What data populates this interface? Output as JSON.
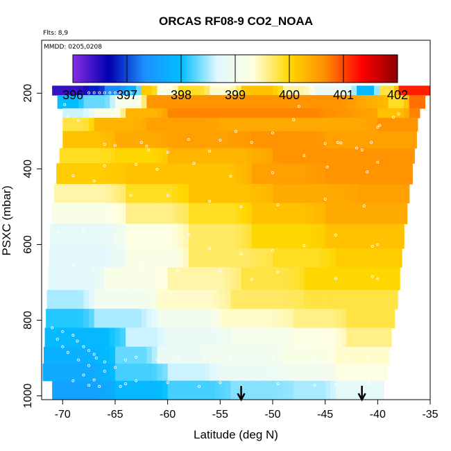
{
  "chart_data": {
    "type": "heatmap",
    "title": "ORCAS RF08-9 CO2_NOAA",
    "subtitle_flights": "Flts: 8,9",
    "subtitle_dates": "MMDD: 0205,0208",
    "xlabel": "Latitude (deg N)",
    "ylabel": "PSXC (mbar)",
    "xlim": [
      -72,
      -35
    ],
    "ylim": [
      1010,
      60
    ],
    "x_ticks": [
      "-70",
      "-65",
      "-60",
      "-55",
      "-50",
      "-45",
      "-40",
      "-35"
    ],
    "y_ticks": [
      "200",
      "400",
      "600",
      "800",
      "1000"
    ],
    "colorbar": {
      "min": 396,
      "max": 402,
      "ticks": [
        "396",
        "397",
        "398",
        "399",
        "400",
        "401",
        "402"
      ],
      "colors": [
        "#8a2be2",
        "#0000b0",
        "#1e90ff",
        "#00bfff",
        "#e0f8ff",
        "#ffffe0",
        "#ffd700",
        "#ff8c00",
        "#ff0000",
        "#8b0000"
      ]
    },
    "layers": [
      {
        "p_top": 180,
        "p_bot": 205,
        "lat_start": -71,
        "lat_end": -35,
        "segments": [
          [
            -71,
            -67.5,
            396.4
          ],
          [
            -67.5,
            -66,
            396.8
          ],
          [
            -66,
            -64,
            397.3
          ],
          [
            -64,
            -62.5,
            397.8
          ],
          [
            -62.5,
            -61,
            400.1
          ],
          [
            -61,
            -59,
            399.3
          ],
          [
            -59,
            -56,
            399.9
          ],
          [
            -56,
            -53,
            399.4
          ],
          [
            -53,
            -49,
            400.2
          ],
          [
            -49,
            -46,
            399.5
          ],
          [
            -46,
            -42,
            398.9
          ],
          [
            -42,
            -39.8,
            397.9
          ],
          [
            -39.8,
            -38,
            399.8
          ],
          [
            -38,
            -35,
            401.2
          ]
        ]
      },
      {
        "p_top": 205,
        "p_bot": 240,
        "lat_start": -70.5,
        "lat_end": -35.5,
        "segments": [
          [
            -70.5,
            -68,
            398.0
          ],
          [
            -68,
            -65,
            398.3
          ],
          [
            -65,
            -62,
            399.1
          ],
          [
            -62,
            -55,
            400.6
          ],
          [
            -55,
            -39,
            400.6
          ],
          [
            -39,
            -37,
            399.9
          ],
          [
            -37,
            -35.5,
            400.8
          ]
        ]
      },
      {
        "p_top": 240,
        "p_bot": 265,
        "lat_start": -70,
        "lat_end": -36,
        "segments": [
          [
            -70,
            -67,
            398.6
          ],
          [
            -67,
            -64,
            399.2
          ],
          [
            -64,
            -60,
            400.3
          ],
          [
            -60,
            -40,
            400.7
          ],
          [
            -40,
            -37,
            400.2
          ],
          [
            -37,
            -36,
            400.7
          ]
        ]
      },
      {
        "p_top": 265,
        "p_bot": 300,
        "lat_start": -70,
        "lat_end": -36.2,
        "segments": [
          [
            -70,
            -67,
            399.8
          ],
          [
            -67,
            -62,
            400.3
          ],
          [
            -62,
            -55,
            400.5
          ],
          [
            -55,
            -48,
            400.4
          ],
          [
            -48,
            -40,
            400.4
          ],
          [
            -40,
            -36.2,
            400.6
          ]
        ]
      },
      {
        "p_top": 300,
        "p_bot": 345,
        "lat_start": -70,
        "lat_end": -36.3,
        "segments": [
          [
            -70,
            -65,
            400.2
          ],
          [
            -65,
            -60,
            400.4
          ],
          [
            -60,
            -52,
            400.5
          ],
          [
            -52,
            -45,
            400.6
          ],
          [
            -45,
            -36.3,
            400.5
          ]
        ]
      },
      {
        "p_top": 345,
        "p_bot": 385,
        "lat_start": -70.3,
        "lat_end": -36.5,
        "segments": [
          [
            -70.3,
            -65,
            399.9
          ],
          [
            -65,
            -60,
            400.0
          ],
          [
            -60,
            -50,
            400.3
          ],
          [
            -50,
            -40,
            400.6
          ],
          [
            -40,
            -36.5,
            400.6
          ]
        ]
      },
      {
        "p_top": 385,
        "p_bot": 440,
        "lat_start": -70.6,
        "lat_end": -36.7,
        "segments": [
          [
            -70.6,
            -64,
            400.1
          ],
          [
            -64,
            -58,
            400.2
          ],
          [
            -58,
            -52,
            400.2
          ],
          [
            -52,
            -45,
            400.5
          ],
          [
            -45,
            -36.7,
            400.6
          ]
        ]
      },
      {
        "p_top": 440,
        "p_bot": 490,
        "lat_start": -70.8,
        "lat_end": -37.0,
        "segments": [
          [
            -70.8,
            -64,
            399.5
          ],
          [
            -64,
            -58,
            399.9
          ],
          [
            -58,
            -50,
            400.2
          ],
          [
            -50,
            -42,
            400.4
          ],
          [
            -42,
            -37.0,
            400.5
          ]
        ]
      },
      {
        "p_top": 490,
        "p_bot": 545,
        "lat_start": -71.0,
        "lat_end": -37.2,
        "segments": [
          [
            -71,
            -64,
            399.2
          ],
          [
            -64,
            -58,
            399.6
          ],
          [
            -58,
            -52,
            399.9
          ],
          [
            -52,
            -45,
            400.2
          ],
          [
            -45,
            -37.2,
            400.4
          ]
        ]
      },
      {
        "p_top": 545,
        "p_bot": 610,
        "lat_start": -71.2,
        "lat_end": -37.5,
        "segments": [
          [
            -71.2,
            -64,
            398.8
          ],
          [
            -64,
            -58,
            399.3
          ],
          [
            -58,
            -52,
            399.7
          ],
          [
            -52,
            -45,
            400.0
          ],
          [
            -45,
            -37.5,
            400.2
          ]
        ]
      },
      {
        "p_top": 610,
        "p_bot": 660,
        "lat_start": -71.3,
        "lat_end": -37.7,
        "segments": [
          [
            -71.3,
            -64,
            398.7
          ],
          [
            -64,
            -58,
            399.2
          ],
          [
            -58,
            -50,
            399.7
          ],
          [
            -50,
            -44,
            399.9
          ],
          [
            -44,
            -37.7,
            400.1
          ]
        ]
      },
      {
        "p_top": 660,
        "p_bot": 720,
        "lat_start": -71.4,
        "lat_end": -37.9,
        "segments": [
          [
            -71.4,
            -66,
            398.7
          ],
          [
            -66,
            -60,
            399.2
          ],
          [
            -60,
            -53,
            399.5
          ],
          [
            -53,
            -47,
            399.8
          ],
          [
            -47,
            -37.9,
            400.0
          ]
        ]
      },
      {
        "p_top": 720,
        "p_bot": 770,
        "lat_start": -71.5,
        "lat_end": -38.1,
        "segments": [
          [
            -71.5,
            -67,
            398.5
          ],
          [
            -67,
            -61,
            399.0
          ],
          [
            -61,
            -54,
            399.4
          ],
          [
            -54,
            -47,
            399.7
          ],
          [
            -47,
            -38.1,
            399.8
          ]
        ]
      },
      {
        "p_top": 770,
        "p_bot": 820,
        "lat_start": -71.6,
        "lat_end": -38.4,
        "segments": [
          [
            -71.6,
            -67,
            398.1
          ],
          [
            -67,
            -61,
            398.5
          ],
          [
            -61,
            -55,
            399.0
          ],
          [
            -55,
            -48,
            399.4
          ],
          [
            -48,
            -43,
            399.6
          ],
          [
            -43,
            -38.4,
            399.8
          ]
        ]
      },
      {
        "p_top": 820,
        "p_bot": 870,
        "lat_start": -71.7,
        "lat_end": -38.7,
        "segments": [
          [
            -71.7,
            -64,
            397.9
          ],
          [
            -64,
            -60,
            398.6
          ],
          [
            -60,
            -54,
            398.9
          ],
          [
            -54,
            -48,
            399.1
          ],
          [
            -48,
            -43,
            399.3
          ],
          [
            -43,
            -38.7,
            399.6
          ]
        ]
      },
      {
        "p_top": 870,
        "p_bot": 915,
        "lat_start": -71.8,
        "lat_end": -38.9,
        "segments": [
          [
            -71.8,
            -65,
            397.8
          ],
          [
            -65,
            -61,
            398.3
          ],
          [
            -61,
            -56,
            398.9
          ],
          [
            -56,
            -49,
            399.0
          ],
          [
            -49,
            -44,
            399.2
          ],
          [
            -44,
            -38.9,
            399.4
          ]
        ]
      },
      {
        "p_top": 915,
        "p_bot": 960,
        "lat_start": -71.9,
        "lat_end": -39.1,
        "segments": [
          [
            -71.9,
            -65,
            397.7
          ],
          [
            -65,
            -60,
            398.2
          ],
          [
            -60,
            -55,
            398.6
          ],
          [
            -55,
            -49,
            398.9
          ],
          [
            -49,
            -44,
            399.0
          ],
          [
            -44,
            -39.1,
            399.3
          ]
        ]
      },
      {
        "p_top": 960,
        "p_bot": 1010,
        "lat_start": -71.0,
        "lat_end": -39.4,
        "segments": [
          [
            -71,
            -65,
            397.6
          ],
          [
            -65,
            -60,
            397.9
          ],
          [
            -60,
            -54,
            398.2
          ],
          [
            -54,
            -48,
            398.4
          ],
          [
            -48,
            -44,
            398.5
          ],
          [
            -44,
            -39.4,
            398.8
          ]
        ]
      }
    ],
    "sample_points": [
      [
        -67.5,
        199
      ],
      [
        -67,
        199
      ],
      [
        -66.5,
        199
      ],
      [
        -66,
        199
      ],
      [
        -65.5,
        199
      ],
      [
        -65,
        199
      ],
      [
        -64.5,
        199
      ],
      [
        -64,
        199
      ],
      [
        -63.5,
        199
      ],
      [
        -69.8,
        230
      ],
      [
        -69.5,
        260
      ],
      [
        -68.5,
        272
      ],
      [
        -66,
        335
      ],
      [
        -65,
        338
      ],
      [
        -62.5,
        330
      ],
      [
        -62,
        340
      ],
      [
        -61.8,
        350
      ],
      [
        -60,
        356
      ],
      [
        -58,
        322
      ],
      [
        -56,
        353
      ],
      [
        -55,
        324
      ],
      [
        -53.5,
        301
      ],
      [
        -52,
        330
      ],
      [
        -50,
        305
      ],
      [
        -48,
        270
      ],
      [
        -47.5,
        235
      ],
      [
        -45,
        333
      ],
      [
        -43.8,
        330
      ],
      [
        -43.5,
        332
      ],
      [
        -42,
        345
      ],
      [
        -41.5,
        350
      ],
      [
        -40.6,
        330
      ],
      [
        -40,
        290
      ],
      [
        -39.8,
        285
      ],
      [
        -38.5,
        263
      ],
      [
        -38,
        255
      ],
      [
        -66,
        392
      ],
      [
        -63,
        388
      ],
      [
        -61,
        401
      ],
      [
        -57.5,
        385
      ],
      [
        -54,
        420
      ],
      [
        -50,
        410
      ],
      [
        -47,
        365
      ],
      [
        -44.8,
        395
      ],
      [
        -41,
        408
      ],
      [
        -40,
        382
      ],
      [
        -69,
        418
      ],
      [
        -67,
        432
      ],
      [
        -63.5,
        470
      ],
      [
        -60,
        470
      ],
      [
        -56,
        485
      ],
      [
        -53,
        500
      ],
      [
        -49.5,
        495
      ],
      [
        -45,
        480
      ],
      [
        -41.3,
        498
      ],
      [
        -70.4,
        565
      ],
      [
        -68,
        560
      ],
      [
        -65,
        585
      ],
      [
        -62,
        590
      ],
      [
        -58,
        573
      ],
      [
        -56,
        610
      ],
      [
        -53,
        625
      ],
      [
        -50,
        615
      ],
      [
        -47,
        603
      ],
      [
        -44,
        575
      ],
      [
        -40.5,
        605
      ],
      [
        -40,
        600
      ],
      [
        -69,
        655
      ],
      [
        -67,
        660
      ],
      [
        -62.5,
        660
      ],
      [
        -59,
        670
      ],
      [
        -55,
        668
      ],
      [
        -52,
        692
      ],
      [
        -49.5,
        672
      ],
      [
        -44,
        690
      ],
      [
        -40.5,
        685
      ],
      [
        -40,
        690
      ],
      [
        -71,
        820
      ],
      [
        -70,
        830
      ],
      [
        -69,
        840
      ],
      [
        -68.6,
        855
      ],
      [
        -68,
        870
      ],
      [
        -67.5,
        880
      ],
      [
        -67,
        890
      ],
      [
        -66.8,
        900
      ],
      [
        -66,
        910
      ],
      [
        -70.5,
        850
      ],
      [
        -70,
        870
      ],
      [
        -69.5,
        885
      ],
      [
        -68.5,
        905
      ],
      [
        -67.5,
        920
      ],
      [
        -66,
        935
      ],
      [
        -68,
        945
      ],
      [
        -67,
        958
      ],
      [
        -65,
        925
      ],
      [
        -64,
        905
      ],
      [
        -63,
        898
      ],
      [
        -61,
        905
      ],
      [
        -59,
        900
      ],
      [
        -56.5,
        902
      ],
      [
        -54,
        898
      ],
      [
        -50,
        900
      ],
      [
        -46,
        902
      ],
      [
        -43,
        905
      ],
      [
        -41,
        900
      ],
      [
        -69,
        960
      ],
      [
        -67.5,
        972
      ],
      [
        -66.5,
        975
      ],
      [
        -64.5,
        975
      ],
      [
        -64,
        968
      ],
      [
        -63,
        960
      ],
      [
        -60,
        965
      ],
      [
        -57,
        975
      ],
      [
        -55,
        965
      ],
      [
        -53,
        975
      ],
      [
        -49.5,
        968
      ],
      [
        -46,
        972
      ],
      [
        -44,
        970
      ],
      [
        -41.5,
        975
      ],
      [
        -40.8,
        965
      ]
    ],
    "markers": [
      {
        "lat": -53.0,
        "label": "down-arrow"
      },
      {
        "lat": -41.5,
        "label": "down-arrow"
      }
    ]
  }
}
